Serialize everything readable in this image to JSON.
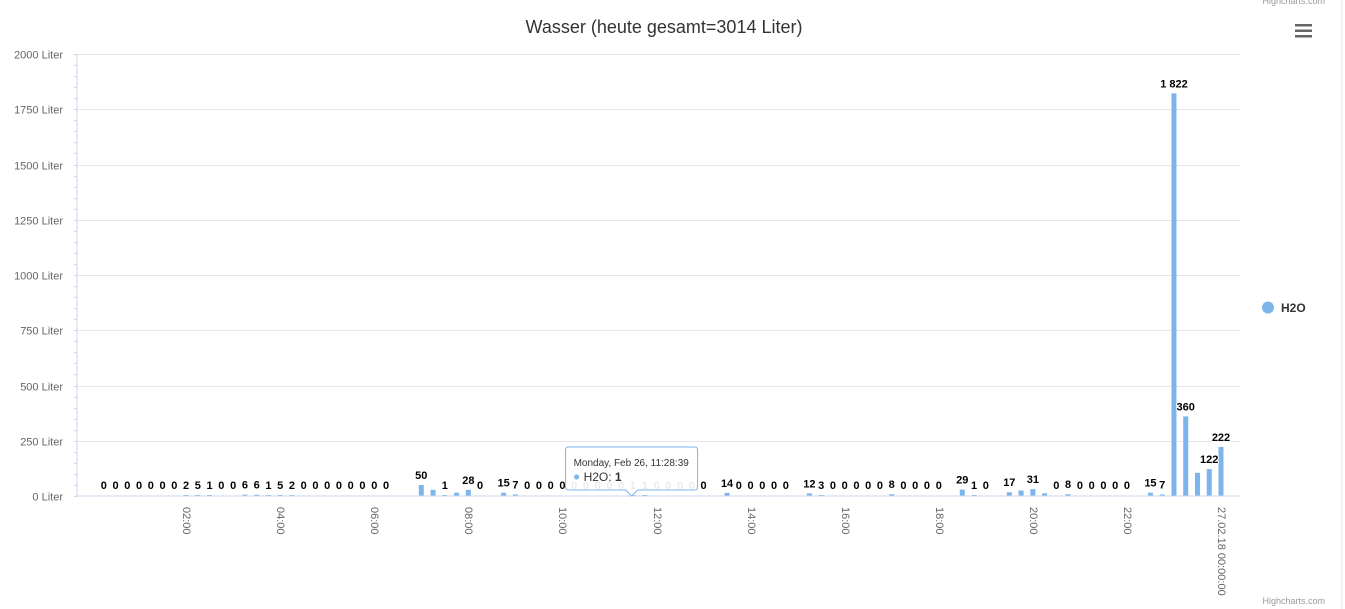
{
  "credits": {
    "text": "Highcharts.com"
  },
  "menu": {
    "icon": "hamburger-menu-icon"
  },
  "colors": {
    "series": "#7cb5ec",
    "grid": "#e6e6e6",
    "axis": "#ccd6eb"
  },
  "chart_data": {
    "type": "bar",
    "title": "Wasser (heute gesamt=3014 Liter)",
    "ylim": [
      0,
      2000
    ],
    "y_ticks": [
      0,
      250,
      500,
      750,
      1000,
      1250,
      1500,
      1750,
      2000
    ],
    "y_tick_labels": [
      "0 Liter",
      "250 Liter",
      "500 Liter",
      "750 Liter",
      "1000 Liter",
      "1250 Liter",
      "1500 Liter",
      "1750 Liter",
      "2000 Liter"
    ],
    "x_unit": "hours",
    "xlim": [
      0,
      24
    ],
    "x_ticks": [
      2,
      4,
      6,
      8,
      10,
      12,
      14,
      16,
      18,
      20,
      22,
      24
    ],
    "x_tick_labels": [
      "02:00",
      "04:00",
      "06:00",
      "08:00",
      "10:00",
      "12:00",
      "14:00",
      "16:00",
      "18:00",
      "20:00",
      "22:00",
      "27.02.18 00:00:00"
    ],
    "grid": true,
    "legend_position": "right",
    "series": [
      {
        "name": "H2O",
        "points": [
          {
            "x": 0.25,
            "y": 0
          },
          {
            "x": 0.5,
            "y": 0
          },
          {
            "x": 0.75,
            "y": 0
          },
          {
            "x": 1.0,
            "y": 0
          },
          {
            "x": 1.25,
            "y": 0
          },
          {
            "x": 1.5,
            "y": 0
          },
          {
            "x": 1.75,
            "y": 0
          },
          {
            "x": 2.0,
            "y": 2
          },
          {
            "x": 2.25,
            "y": 5
          },
          {
            "x": 2.5,
            "y": 1
          },
          {
            "x": 2.75,
            "y": 0
          },
          {
            "x": 3.0,
            "y": 0
          },
          {
            "x": 3.25,
            "y": 6
          },
          {
            "x": 3.5,
            "y": 6
          },
          {
            "x": 3.75,
            "y": 1
          },
          {
            "x": 4.0,
            "y": 5
          },
          {
            "x": 4.25,
            "y": 2
          },
          {
            "x": 4.5,
            "y": 0
          },
          {
            "x": 4.75,
            "y": 0
          },
          {
            "x": 5.0,
            "y": 0
          },
          {
            "x": 5.25,
            "y": 0
          },
          {
            "x": 5.5,
            "y": 0
          },
          {
            "x": 5.75,
            "y": 0
          },
          {
            "x": 6.0,
            "y": 0
          },
          {
            "x": 6.25,
            "y": 0
          },
          {
            "x": 6.75,
            "y": 0
          },
          {
            "x": 7.0,
            "y": 50
          },
          {
            "x": 7.25,
            "y": 28
          },
          {
            "x": 7.5,
            "y": 1
          },
          {
            "x": 7.75,
            "y": 15
          },
          {
            "x": 8.0,
            "y": 28
          },
          {
            "x": 8.25,
            "y": 0
          },
          {
            "x": 8.75,
            "y": 15
          },
          {
            "x": 9.0,
            "y": 7
          },
          {
            "x": 9.25,
            "y": 0
          },
          {
            "x": 9.5,
            "y": 0
          },
          {
            "x": 9.75,
            "y": 0
          },
          {
            "x": 10.0,
            "y": 0
          },
          {
            "x": 10.25,
            "y": 0
          },
          {
            "x": 10.5,
            "y": 0
          },
          {
            "x": 10.75,
            "y": 0
          },
          {
            "x": 11.0,
            "y": 0
          },
          {
            "x": 11.25,
            "y": 0
          },
          {
            "x": 11.5,
            "y": 1
          },
          {
            "x": 11.75,
            "y": 1
          },
          {
            "x": 12.0,
            "y": 0
          },
          {
            "x": 12.25,
            "y": 0
          },
          {
            "x": 12.5,
            "y": 0
          },
          {
            "x": 12.75,
            "y": 0
          },
          {
            "x": 13.0,
            "y": 0
          },
          {
            "x": 13.5,
            "y": 14
          },
          {
            "x": 13.75,
            "y": 0
          },
          {
            "x": 14.0,
            "y": 0
          },
          {
            "x": 14.25,
            "y": 0
          },
          {
            "x": 14.5,
            "y": 0
          },
          {
            "x": 14.75,
            "y": 0
          },
          {
            "x": 15.25,
            "y": 12
          },
          {
            "x": 15.5,
            "y": 3
          },
          {
            "x": 15.75,
            "y": 0
          },
          {
            "x": 16.0,
            "y": 0
          },
          {
            "x": 16.25,
            "y": 0
          },
          {
            "x": 16.5,
            "y": 0
          },
          {
            "x": 16.75,
            "y": 0
          },
          {
            "x": 17.0,
            "y": 8
          },
          {
            "x": 17.25,
            "y": 0
          },
          {
            "x": 17.5,
            "y": 0
          },
          {
            "x": 17.75,
            "y": 0
          },
          {
            "x": 18.0,
            "y": 0
          },
          {
            "x": 18.5,
            "y": 29
          },
          {
            "x": 18.75,
            "y": 1
          },
          {
            "x": 19.0,
            "y": 0
          },
          {
            "x": 19.5,
            "y": 17
          },
          {
            "x": 19.75,
            "y": 25
          },
          {
            "x": 20.0,
            "y": 31
          },
          {
            "x": 20.25,
            "y": 12
          },
          {
            "x": 20.5,
            "y": 0
          },
          {
            "x": 20.75,
            "y": 8
          },
          {
            "x": 21.0,
            "y": 0
          },
          {
            "x": 21.25,
            "y": 0
          },
          {
            "x": 21.5,
            "y": 0
          },
          {
            "x": 21.75,
            "y": 0
          },
          {
            "x": 22.0,
            "y": 0
          },
          {
            "x": 22.5,
            "y": 15
          },
          {
            "x": 22.75,
            "y": 7
          },
          {
            "x": 23.0,
            "y": 1822
          },
          {
            "x": 23.25,
            "y": 360
          },
          {
            "x": 23.5,
            "y": 105
          },
          {
            "x": 23.75,
            "y": 122
          },
          {
            "x": 24.0,
            "y": 222
          }
        ]
      }
    ],
    "data_labels": [
      {
        "x": 0.25,
        "text": "0"
      },
      {
        "x": 0.5,
        "text": "0"
      },
      {
        "x": 0.75,
        "text": "0"
      },
      {
        "x": 1.0,
        "text": "0"
      },
      {
        "x": 1.25,
        "text": "0"
      },
      {
        "x": 1.5,
        "text": "0"
      },
      {
        "x": 1.75,
        "text": "0"
      },
      {
        "x": 2.0,
        "text": "2"
      },
      {
        "x": 2.25,
        "text": "5"
      },
      {
        "x": 2.5,
        "text": "1"
      },
      {
        "x": 2.75,
        "text": "0"
      },
      {
        "x": 3.0,
        "text": "0"
      },
      {
        "x": 3.25,
        "text": "6"
      },
      {
        "x": 3.5,
        "text": "6"
      },
      {
        "x": 3.75,
        "text": "1"
      },
      {
        "x": 4.0,
        "text": "5"
      },
      {
        "x": 4.25,
        "text": "2"
      },
      {
        "x": 4.5,
        "text": "0"
      },
      {
        "x": 4.75,
        "text": "0"
      },
      {
        "x": 5.0,
        "text": "0"
      },
      {
        "x": 5.25,
        "text": "0"
      },
      {
        "x": 5.5,
        "text": "0"
      },
      {
        "x": 5.75,
        "text": "0"
      },
      {
        "x": 6.0,
        "text": "0"
      },
      {
        "x": 6.25,
        "text": "0"
      },
      {
        "x": 7.0,
        "text": "50"
      },
      {
        "x": 7.5,
        "text": "1"
      },
      {
        "x": 8.0,
        "text": "28"
      },
      {
        "x": 8.25,
        "text": "0"
      },
      {
        "x": 8.75,
        "text": "15"
      },
      {
        "x": 9.0,
        "text": "7"
      },
      {
        "x": 9.25,
        "text": "0"
      },
      {
        "x": 9.5,
        "text": "0"
      },
      {
        "x": 9.75,
        "text": "0"
      },
      {
        "x": 10.0,
        "text": "0"
      },
      {
        "x": 10.25,
        "text": "0"
      },
      {
        "x": 10.5,
        "text": "0"
      },
      {
        "x": 10.75,
        "text": "0"
      },
      {
        "x": 11.0,
        "text": "0"
      },
      {
        "x": 11.25,
        "text": "0"
      },
      {
        "x": 11.5,
        "text": "1"
      },
      {
        "x": 11.75,
        "text": "1"
      },
      {
        "x": 12.0,
        "text": "0"
      },
      {
        "x": 12.25,
        "text": "0"
      },
      {
        "x": 12.5,
        "text": "0"
      },
      {
        "x": 12.75,
        "text": "0"
      },
      {
        "x": 13.0,
        "text": "0"
      },
      {
        "x": 13.5,
        "text": "14"
      },
      {
        "x": 13.75,
        "text": "0"
      },
      {
        "x": 14.0,
        "text": "0"
      },
      {
        "x": 14.25,
        "text": "0"
      },
      {
        "x": 14.5,
        "text": "0"
      },
      {
        "x": 14.75,
        "text": "0"
      },
      {
        "x": 15.25,
        "text": "12"
      },
      {
        "x": 15.5,
        "text": "3"
      },
      {
        "x": 15.75,
        "text": "0"
      },
      {
        "x": 16.0,
        "text": "0"
      },
      {
        "x": 16.25,
        "text": "0"
      },
      {
        "x": 16.5,
        "text": "0"
      },
      {
        "x": 16.75,
        "text": "0"
      },
      {
        "x": 17.0,
        "text": "8"
      },
      {
        "x": 17.25,
        "text": "0"
      },
      {
        "x": 17.5,
        "text": "0"
      },
      {
        "x": 17.75,
        "text": "0"
      },
      {
        "x": 18.0,
        "text": "0"
      },
      {
        "x": 18.5,
        "text": "29"
      },
      {
        "x": 18.75,
        "text": "1"
      },
      {
        "x": 19.0,
        "text": "0"
      },
      {
        "x": 19.5,
        "text": "17"
      },
      {
        "x": 20.0,
        "text": "31"
      },
      {
        "x": 20.5,
        "text": "0"
      },
      {
        "x": 20.75,
        "text": "8"
      },
      {
        "x": 21.0,
        "text": "0"
      },
      {
        "x": 21.25,
        "text": "0"
      },
      {
        "x": 21.5,
        "text": "0"
      },
      {
        "x": 21.75,
        "text": "0"
      },
      {
        "x": 22.0,
        "text": "0"
      },
      {
        "x": 22.5,
        "text": "15"
      },
      {
        "x": 22.75,
        "text": "7"
      },
      {
        "x": 23.0,
        "text": "1 822"
      },
      {
        "x": 23.25,
        "text": "360"
      },
      {
        "x": 23.75,
        "text": "122"
      },
      {
        "x": 24.0,
        "text": "222"
      }
    ],
    "tooltip": {
      "x": 11.47,
      "header": "Monday, Feb 26, 11:28:39",
      "series_label": "H2O: ",
      "value": "1"
    }
  }
}
